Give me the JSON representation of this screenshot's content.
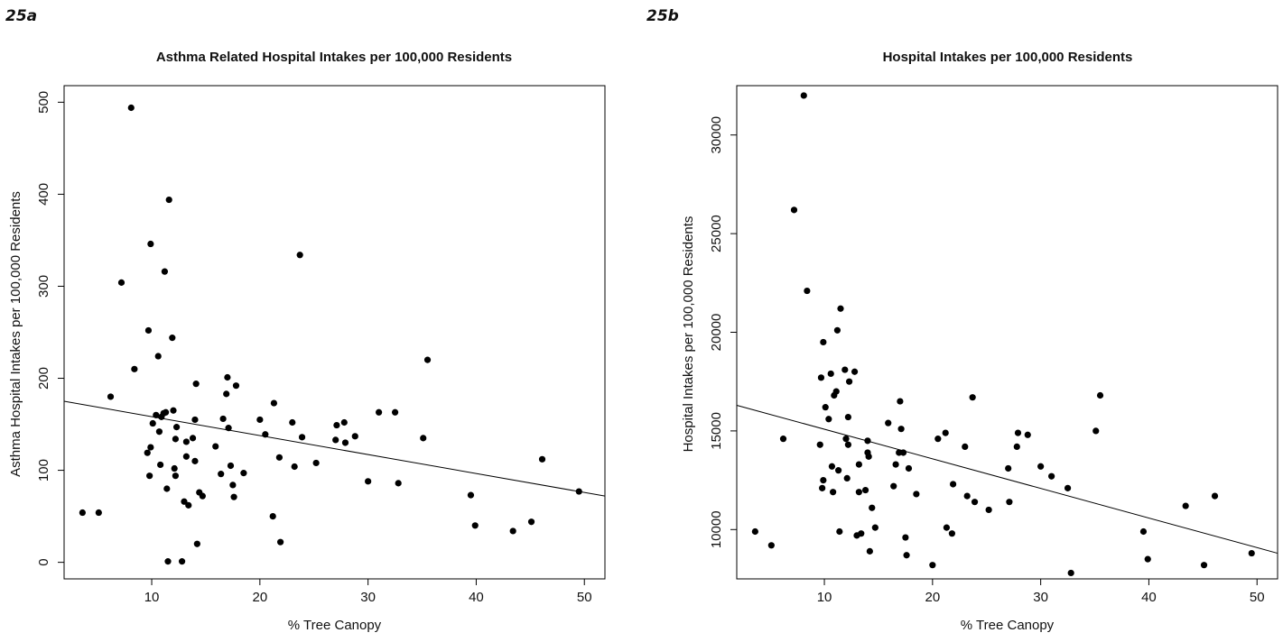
{
  "chart_data": [
    {
      "type": "scatter",
      "panel_label": "25a",
      "title": "Asthma Related Hospital Intakes per 100,000 Residents",
      "xlabel": "% Tree Canopy",
      "ylabel": "Asthma Hospital Intakes per 100,000 Residents",
      "xlim": [
        1.9,
        51.9
      ],
      "ylim": [
        -18,
        518
      ],
      "xticks": [
        10,
        20,
        30,
        40,
        50
      ],
      "yticks": [
        0,
        100,
        200,
        300,
        400,
        500
      ],
      "fit_line": {
        "x": [
          1.9,
          51.9
        ],
        "y": [
          175,
          72
        ]
      },
      "points": [
        [
          3.6,
          54
        ],
        [
          5.1,
          54
        ],
        [
          6.2,
          180
        ],
        [
          7.2,
          304
        ],
        [
          8.1,
          494
        ],
        [
          8.4,
          210
        ],
        [
          9.6,
          119
        ],
        [
          9.7,
          252
        ],
        [
          9.8,
          94
        ],
        [
          9.9,
          125
        ],
        [
          9.9,
          346
        ],
        [
          10.1,
          151
        ],
        [
          10.4,
          160
        ],
        [
          10.6,
          224
        ],
        [
          10.7,
          142
        ],
        [
          10.8,
          106
        ],
        [
          10.9,
          158
        ],
        [
          11.1,
          162
        ],
        [
          11.2,
          316
        ],
        [
          11.3,
          163
        ],
        [
          11.4,
          80
        ],
        [
          11.5,
          1
        ],
        [
          11.6,
          394
        ],
        [
          11.9,
          244
        ],
        [
          12.0,
          165
        ],
        [
          12.1,
          102
        ],
        [
          12.2,
          134
        ],
        [
          12.2,
          94
        ],
        [
          12.3,
          147
        ],
        [
          12.8,
          1
        ],
        [
          13.0,
          66
        ],
        [
          13.2,
          115
        ],
        [
          13.2,
          131
        ],
        [
          13.4,
          62
        ],
        [
          13.8,
          135
        ],
        [
          14.0,
          155
        ],
        [
          14.0,
          110
        ],
        [
          14.1,
          194
        ],
        [
          14.2,
          20
        ],
        [
          14.4,
          76
        ],
        [
          14.7,
          72
        ],
        [
          15.9,
          126
        ],
        [
          16.4,
          96
        ],
        [
          16.6,
          156
        ],
        [
          16.9,
          183
        ],
        [
          17.0,
          201
        ],
        [
          17.1,
          146
        ],
        [
          17.3,
          105
        ],
        [
          17.5,
          84
        ],
        [
          17.6,
          71
        ],
        [
          17.8,
          192
        ],
        [
          18.5,
          97
        ],
        [
          20.0,
          155
        ],
        [
          20.5,
          139
        ],
        [
          21.2,
          50
        ],
        [
          21.3,
          173
        ],
        [
          21.8,
          114
        ],
        [
          21.9,
          22
        ],
        [
          23.0,
          152
        ],
        [
          23.2,
          104
        ],
        [
          23.7,
          334
        ],
        [
          23.9,
          136
        ],
        [
          25.2,
          108
        ],
        [
          27.0,
          133
        ],
        [
          27.1,
          149
        ],
        [
          27.8,
          152
        ],
        [
          27.9,
          130
        ],
        [
          28.8,
          137
        ],
        [
          30.0,
          88
        ],
        [
          31.0,
          163
        ],
        [
          32.5,
          163
        ],
        [
          32.8,
          86
        ],
        [
          35.1,
          135
        ],
        [
          35.5,
          220
        ],
        [
          39.5,
          73
        ],
        [
          39.9,
          40
        ],
        [
          43.4,
          34
        ],
        [
          45.1,
          44
        ],
        [
          46.1,
          112
        ],
        [
          49.5,
          77
        ]
      ]
    },
    {
      "type": "scatter",
      "panel_label": "25b",
      "title": "Hospital Intakes per 100,000 Residents",
      "xlabel": "% Tree Canopy",
      "ylabel": "Hospital Intakes per 100,000 Residents",
      "xlim": [
        1.9,
        51.9
      ],
      "ylim": [
        7500,
        32500
      ],
      "xticks": [
        10,
        20,
        30,
        40,
        50
      ],
      "yticks": [
        10000,
        15000,
        20000,
        25000,
        30000
      ],
      "fit_line": {
        "x": [
          1.9,
          51.9
        ],
        "y": [
          16300,
          8800
        ]
      },
      "points": [
        [
          3.6,
          9900
        ],
        [
          5.1,
          9200
        ],
        [
          6.2,
          14600
        ],
        [
          7.2,
          26200
        ],
        [
          8.1,
          32000
        ],
        [
          8.4,
          22100
        ],
        [
          9.6,
          14300
        ],
        [
          9.7,
          17700
        ],
        [
          9.8,
          12100
        ],
        [
          9.9,
          12500
        ],
        [
          9.9,
          19500
        ],
        [
          10.1,
          16200
        ],
        [
          10.4,
          15600
        ],
        [
          10.6,
          17900
        ],
        [
          10.7,
          13200
        ],
        [
          10.8,
          11900
        ],
        [
          10.9,
          16800
        ],
        [
          11.1,
          17000
        ],
        [
          11.2,
          20100
        ],
        [
          11.3,
          13000
        ],
        [
          11.4,
          9900
        ],
        [
          11.5,
          21200
        ],
        [
          11.9,
          18100
        ],
        [
          12.0,
          14600
        ],
        [
          12.1,
          12600
        ],
        [
          12.2,
          15700
        ],
        [
          12.2,
          14300
        ],
        [
          12.3,
          17500
        ],
        [
          12.8,
          18000
        ],
        [
          13.0,
          9700
        ],
        [
          13.2,
          13300
        ],
        [
          13.2,
          11900
        ],
        [
          13.4,
          9800
        ],
        [
          13.8,
          12000
        ],
        [
          14.0,
          14500
        ],
        [
          14.0,
          13900
        ],
        [
          14.1,
          13700
        ],
        [
          14.2,
          8900
        ],
        [
          14.4,
          11100
        ],
        [
          14.7,
          10100
        ],
        [
          15.9,
          15400
        ],
        [
          16.4,
          12200
        ],
        [
          16.6,
          13300
        ],
        [
          16.9,
          13900
        ],
        [
          17.0,
          16500
        ],
        [
          17.1,
          15100
        ],
        [
          17.3,
          13900
        ],
        [
          17.5,
          9600
        ],
        [
          17.6,
          8700
        ],
        [
          17.8,
          13100
        ],
        [
          18.5,
          11800
        ],
        [
          20.0,
          8200
        ],
        [
          20.5,
          14600
        ],
        [
          21.2,
          14900
        ],
        [
          21.3,
          10100
        ],
        [
          21.8,
          9800
        ],
        [
          21.9,
          12300
        ],
        [
          23.0,
          14200
        ],
        [
          23.2,
          11700
        ],
        [
          23.7,
          16700
        ],
        [
          23.9,
          11400
        ],
        [
          25.2,
          11000
        ],
        [
          27.0,
          13100
        ],
        [
          27.1,
          11400
        ],
        [
          27.8,
          14200
        ],
        [
          27.9,
          14900
        ],
        [
          28.8,
          14800
        ],
        [
          30.0,
          13200
        ],
        [
          31.0,
          12700
        ],
        [
          32.5,
          12100
        ],
        [
          32.8,
          7800
        ],
        [
          35.1,
          15000
        ],
        [
          35.5,
          16800
        ],
        [
          39.5,
          9900
        ],
        [
          39.9,
          8500
        ],
        [
          43.4,
          11200
        ],
        [
          45.1,
          8200
        ],
        [
          46.1,
          11700
        ],
        [
          49.5,
          8800
        ]
      ]
    }
  ]
}
